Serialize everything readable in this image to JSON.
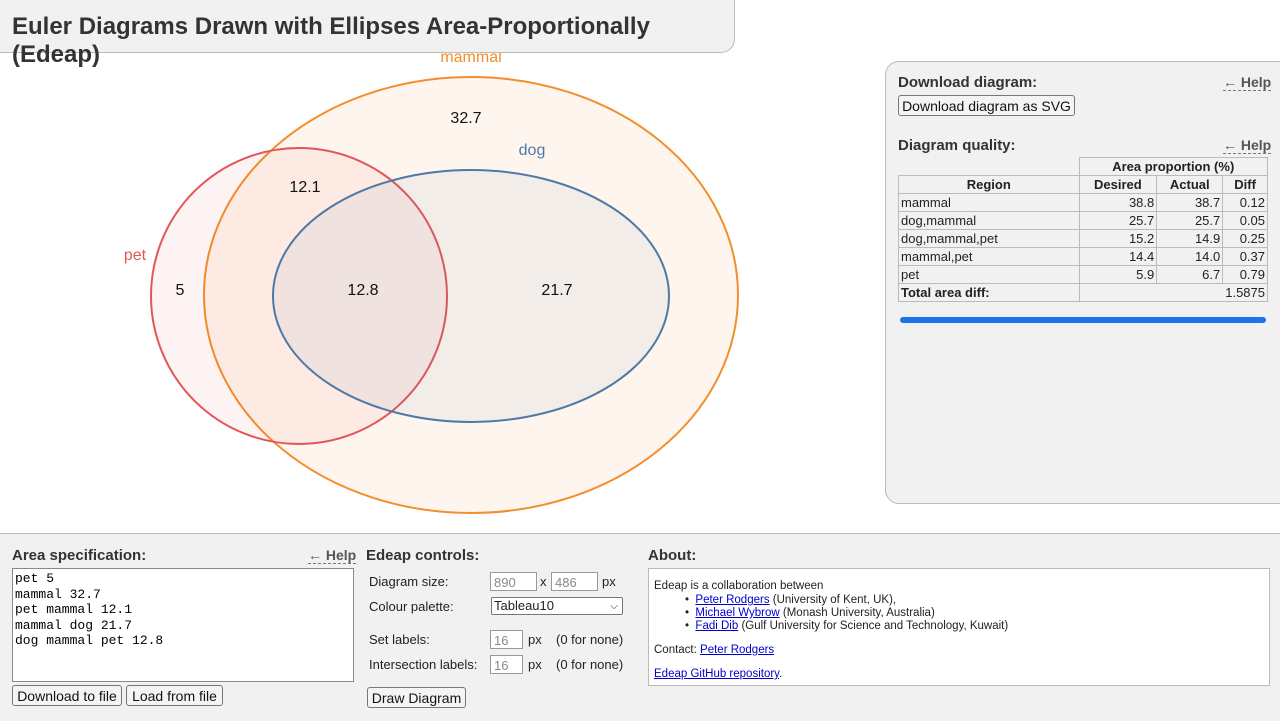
{
  "page": {
    "title": "Euler Diagrams Drawn with Ellipses Area-Proportionally (Edeap)"
  },
  "diagram": {
    "sets": [
      {
        "name": "mammal",
        "color": "#f28e2b"
      },
      {
        "name": "dog",
        "color": "#4e79a7"
      },
      {
        "name": "pet",
        "color": "#e15759"
      }
    ],
    "region_labels": [
      "32.7",
      "12.1",
      "5",
      "12.8",
      "21.7"
    ]
  },
  "download": {
    "heading": "Download diagram:",
    "help": "← Help",
    "button": "Download diagram as SVG"
  },
  "quality": {
    "heading": "Diagram quality:",
    "help": "← Help",
    "group_header": "Area proportion (%)",
    "columns": [
      "Region",
      "Desired",
      "Actual",
      "Diff"
    ],
    "rows": [
      {
        "region": "mammal",
        "desired": "38.8",
        "actual": "38.7",
        "diff": "0.12"
      },
      {
        "region": "dog,mammal",
        "desired": "25.7",
        "actual": "25.7",
        "diff": "0.05"
      },
      {
        "region": "dog,mammal,pet",
        "desired": "15.2",
        "actual": "14.9",
        "diff": "0.25"
      },
      {
        "region": "mammal,pet",
        "desired": "14.4",
        "actual": "14.0",
        "diff": "0.37"
      },
      {
        "region": "pet",
        "desired": "5.9",
        "actual": "6.7",
        "diff": "0.79"
      }
    ],
    "total_label": "Total area diff:",
    "total_value": "1.5875",
    "bar_color": "#1a73e8"
  },
  "area_spec": {
    "heading": "Area specification:",
    "help": "← Help",
    "text": "pet 5\nmammal 32.7\npet mammal 12.1\nmammal dog 21.7\ndog mammal pet 12.8",
    "download_button": "Download to file",
    "load_button": "Load from file"
  },
  "controls": {
    "heading": "Edeap controls:",
    "size_label": "Diagram size:",
    "width": "890",
    "x": "x",
    "height": "486",
    "px": "px",
    "palette_label": "Colour palette:",
    "palette": "Tableau10",
    "set_labels_label": "Set labels:",
    "set_labels_value": "16",
    "intersection_labels_label": "Intersection labels:",
    "intersection_labels_value": "16",
    "none_hint": "(0 for none)",
    "draw_button": "Draw Diagram"
  },
  "about": {
    "heading": "About:",
    "intro": "Edeap is a collaboration between",
    "people": [
      {
        "name": "Peter Rodgers",
        "affiliation": "(University of Kent, UK),"
      },
      {
        "name": "Michael Wybrow",
        "affiliation": "(Monash University, Australia)"
      },
      {
        "name": "Fadi Dib",
        "affiliation": "(Gulf University for Science and Technology, Kuwait)"
      }
    ],
    "contact_label": "Contact:",
    "contact_name": "Peter Rodgers",
    "repo_link": "Edeap GitHub repository",
    "repo_suffix": "."
  }
}
